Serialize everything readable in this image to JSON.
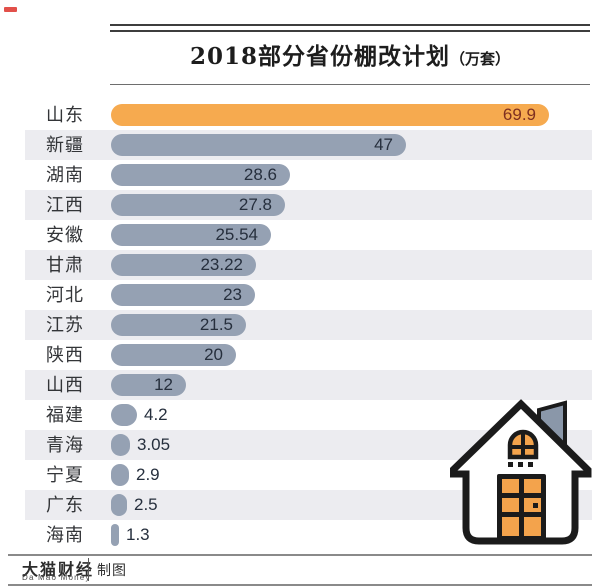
{
  "title": {
    "main": "2018部分省份棚改计划",
    "unit": "（万套）"
  },
  "chart_data": {
    "type": "bar",
    "orientation": "horizontal",
    "title": "2018部分省份棚改计划（万套）",
    "xlabel": "",
    "ylabel": "",
    "xlim": [
      0,
      78
    ],
    "grid": false,
    "legend": false,
    "categories": [
      "山东",
      "新疆",
      "湖南",
      "江西",
      "安徽",
      "甘肃",
      "河北",
      "江苏",
      "陕西",
      "山西",
      "福建",
      "青海",
      "宁夏",
      "广东",
      "海南"
    ],
    "values": [
      69.9,
      47,
      28.6,
      27.8,
      25.54,
      23.22,
      23,
      21.5,
      20,
      12,
      4.2,
      3.05,
      2.9,
      2.5,
      1.3
    ],
    "value_labels": [
      "69.9",
      "47",
      "28.6",
      "27.8",
      "25.54",
      "23.22",
      "23",
      "21.5",
      "20",
      "12",
      "4.2",
      "3.05",
      "2.9",
      "2.5",
      "1.3"
    ],
    "highlight_index": 0,
    "row_stripe_on_even_rank": true,
    "colors": {
      "highlight_bar": "#F6AA4F",
      "bar": "#95A1B3",
      "highlight_value_text": "#7E2F20",
      "value_text": "#262F3D",
      "row_stripe": "#ECECF0",
      "corner_mark": "#E2504A"
    }
  },
  "footer": {
    "brand": "大猫财经",
    "brand_sub": "Da Mao Money",
    "credit": "制图"
  },
  "house": {
    "name": "house-icon",
    "outline": "#1b1b1b",
    "accent": "#F3A34C",
    "chimney": "#8A97A9",
    "body": "#ffffff"
  }
}
